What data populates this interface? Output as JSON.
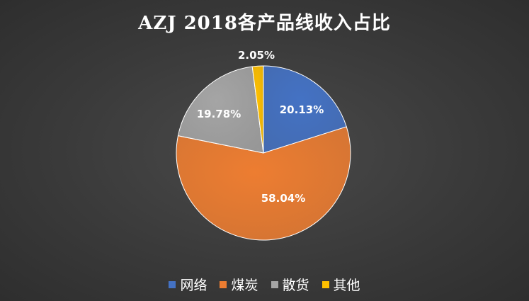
{
  "chart_data": {
    "type": "pie",
    "title": "AZJ 2018各产品线收入占比",
    "categories": [
      "网络",
      "煤炭",
      "散货",
      "其他"
    ],
    "values": [
      20.13,
      58.04,
      19.78,
      2.05
    ],
    "labels": [
      "20.13%",
      "58.04%",
      "19.78%",
      "2.05%"
    ],
    "colors": [
      "#4472C4",
      "#ED7D31",
      "#A5A5A5",
      "#FFC000"
    ],
    "legend_position": "bottom",
    "start_angle": "12 o'clock",
    "direction": "clockwise"
  }
}
